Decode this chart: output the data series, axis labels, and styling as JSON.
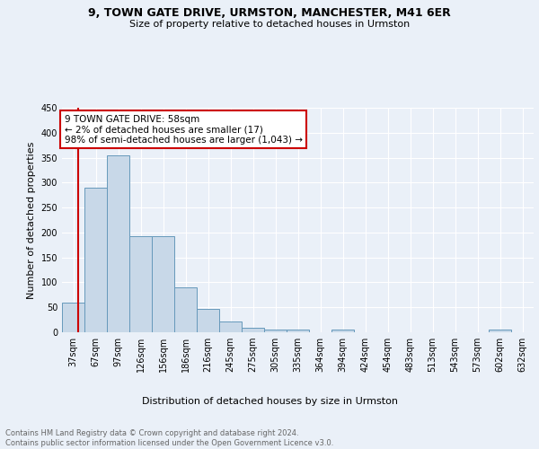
{
  "title1": "9, TOWN GATE DRIVE, URMSTON, MANCHESTER, M41 6ER",
  "title2": "Size of property relative to detached houses in Urmston",
  "xlabel": "Distribution of detached houses by size in Urmston",
  "ylabel": "Number of detached properties",
  "footnote": "Contains HM Land Registry data © Crown copyright and database right 2024.\nContains public sector information licensed under the Open Government Licence v3.0.",
  "bin_labels": [
    "37sqm",
    "67sqm",
    "97sqm",
    "126sqm",
    "156sqm",
    "186sqm",
    "216sqm",
    "245sqm",
    "275sqm",
    "305sqm",
    "335sqm",
    "364sqm",
    "394sqm",
    "424sqm",
    "454sqm",
    "483sqm",
    "513sqm",
    "543sqm",
    "573sqm",
    "602sqm",
    "632sqm"
  ],
  "bar_values": [
    59,
    289,
    355,
    192,
    192,
    90,
    46,
    21,
    9,
    5,
    5,
    0,
    5,
    0,
    0,
    0,
    0,
    0,
    0,
    5,
    0
  ],
  "bar_color": "#c8d8e8",
  "bar_edgecolor": "#6699bb",
  "vline_color": "#cc0000",
  "annotation_text": "9 TOWN GATE DRIVE: 58sqm\n← 2% of detached houses are smaller (17)\n98% of semi-detached houses are larger (1,043) →",
  "annotation_box_edgecolor": "#cc0000",
  "annotation_box_facecolor": "#ffffff",
  "ylim": [
    0,
    450
  ],
  "background_color": "#eaf0f8",
  "plot_bg_color": "#eaf0f8"
}
